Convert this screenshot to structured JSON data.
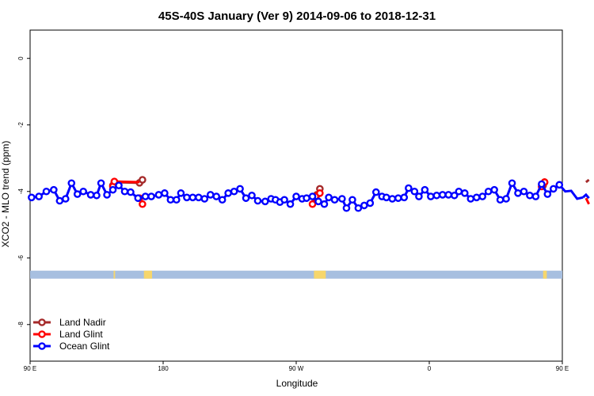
{
  "chart_data": {
    "type": "line",
    "title": "45S-40S January (Ver 9)   2014-09-06 to 2018-12-31",
    "xlabel": "Longitude",
    "ylabel": "XCO2 - MLO trend (ppm)",
    "xlim": [
      90,
      450
    ],
    "ylim": [
      -9.1,
      0.85
    ],
    "x_ticks": [
      {
        "value": 90,
        "label": "90 E"
      },
      {
        "value": 180,
        "label": "180"
      },
      {
        "value": 270,
        "label": "90 W"
      },
      {
        "value": 360,
        "label": "0"
      },
      {
        "value": 450,
        "label": "90 E"
      },
      {
        "value": 540,
        "label": "180"
      }
    ],
    "y_ticks": [
      0,
      -2,
      -4,
      -6,
      -8
    ],
    "grid": false,
    "legend_position": "bottom-left",
    "land_band": {
      "y_range": [
        -6.38,
        -6.62
      ],
      "ocean_color": "#a7bfe0",
      "land_color": "#f6d66c",
      "land_segments": [
        [
          146.5,
          147.5
        ],
        [
          167,
          172.5
        ],
        [
          282,
          290
        ],
        [
          437,
          439.5
        ],
        [
          461,
          467
        ]
      ]
    },
    "series": [
      {
        "name": "Land Nadir",
        "color": "#a52a2a",
        "points": [
          [
            146,
            -3.82
          ],
          [
            147,
            -3.72
          ],
          [
            164,
            -3.74
          ],
          [
            166,
            -3.65
          ]
        ],
        "segments": [
          [
            [
              146,
              -3.82
            ],
            [
              147,
              -3.72
            ],
            [
              164,
              -3.74
            ],
            [
              166,
              -3.65
            ]
          ],
          [
            [
              284,
              -4.1
            ],
            [
              286,
              -3.92
            ]
          ],
          [
            [
              437,
              -3.82
            ],
            [
              438,
              -3.72
            ]
          ],
          [
            [
              466,
              -3.72
            ],
            [
              468,
              -3.65
            ]
          ]
        ],
        "extra_points": [
          [
            284,
            -4.1
          ],
          [
            286,
            -3.92
          ],
          [
            437,
            -3.82
          ],
          [
            438,
            -3.72
          ],
          [
            466,
            -3.72
          ],
          [
            468,
            -3.65
          ]
        ]
      },
      {
        "name": "Land Glint",
        "color": "#ff0000",
        "points": [
          [
            146,
            -3.85
          ],
          [
            147,
            -3.7
          ],
          [
            164,
            -4.2
          ],
          [
            166,
            -4.38
          ]
        ],
        "segments": [
          [
            [
              146,
              -3.85
            ],
            [
              147,
              -3.7
            ],
            [
              164,
              -3.72
            ]
          ],
          [
            [
              164,
              -4.2
            ],
            [
              166,
              -4.38
            ]
          ],
          [
            [
              281,
              -4.38
            ],
            [
              283,
              -4.15
            ],
            [
              286,
              -4.05
            ]
          ],
          [
            [
              436,
              -3.85
            ],
            [
              438,
              -3.72
            ]
          ],
          [
            [
              466,
              -4.2
            ],
            [
              468,
              -4.38
            ]
          ]
        ],
        "extra_points": [
          [
            281,
            -4.38
          ],
          [
            283,
            -4.15
          ],
          [
            286,
            -4.05
          ],
          [
            436,
            -3.85
          ],
          [
            438,
            -3.72
          ],
          [
            466,
            -4.2
          ],
          [
            468,
            -4.38
          ]
        ]
      },
      {
        "name": "Ocean Glint",
        "color": "#0000ff",
        "points": [
          [
            91,
            -4.18
          ],
          [
            96,
            -4.15
          ],
          [
            101,
            -4.0
          ],
          [
            106,
            -3.95
          ],
          [
            110,
            -4.28
          ],
          [
            114,
            -4.22
          ],
          [
            118,
            -3.75
          ],
          [
            122,
            -4.08
          ],
          [
            126,
            -4.0
          ],
          [
            131,
            -4.1
          ],
          [
            135,
            -4.12
          ],
          [
            138,
            -3.75
          ],
          [
            142,
            -4.1
          ],
          [
            146,
            -3.95
          ],
          [
            150,
            -3.82
          ],
          [
            154,
            -4.0
          ],
          [
            158,
            -4.02
          ],
          [
            163,
            -4.2
          ],
          [
            168,
            -4.15
          ],
          [
            172,
            -4.15
          ],
          [
            177,
            -4.1
          ],
          [
            181,
            -4.05
          ],
          [
            185,
            -4.25
          ],
          [
            189,
            -4.25
          ],
          [
            192,
            -4.05
          ],
          [
            196,
            -4.18
          ],
          [
            200,
            -4.18
          ],
          [
            204,
            -4.18
          ],
          [
            208,
            -4.22
          ],
          [
            212,
            -4.1
          ],
          [
            216,
            -4.15
          ],
          [
            220,
            -4.25
          ],
          [
            224,
            -4.05
          ],
          [
            228,
            -4.0
          ],
          [
            232,
            -3.92
          ],
          [
            236,
            -4.2
          ],
          [
            240,
            -4.12
          ],
          [
            244,
            -4.28
          ],
          [
            249,
            -4.3
          ],
          [
            253,
            -4.22
          ],
          [
            256,
            -4.25
          ],
          [
            259,
            -4.32
          ],
          [
            262,
            -4.25
          ],
          [
            266,
            -4.38
          ],
          [
            270,
            -4.15
          ],
          [
            274,
            -4.22
          ],
          [
            277,
            -4.2
          ],
          [
            281,
            -4.15
          ],
          [
            285,
            -4.3
          ],
          [
            289,
            -4.38
          ],
          [
            292,
            -4.18
          ],
          [
            296,
            -4.25
          ],
          [
            301,
            -4.22
          ],
          [
            304,
            -4.5
          ],
          [
            308,
            -4.25
          ],
          [
            312,
            -4.5
          ],
          [
            316,
            -4.42
          ],
          [
            320,
            -4.35
          ],
          [
            324,
            -4.02
          ],
          [
            328,
            -4.15
          ],
          [
            331,
            -4.18
          ],
          [
            335,
            -4.22
          ],
          [
            339,
            -4.2
          ],
          [
            343,
            -4.18
          ],
          [
            346,
            -3.9
          ],
          [
            350,
            -4.0
          ],
          [
            353,
            -4.15
          ],
          [
            357,
            -3.95
          ],
          [
            361,
            -4.15
          ],
          [
            365,
            -4.12
          ],
          [
            369,
            -4.1
          ],
          [
            373,
            -4.1
          ],
          [
            377,
            -4.12
          ],
          [
            380,
            -4.0
          ],
          [
            384,
            -4.05
          ],
          [
            388,
            -4.22
          ],
          [
            392,
            -4.18
          ],
          [
            396,
            -4.15
          ],
          [
            400,
            -4.0
          ],
          [
            404,
            -3.95
          ],
          [
            408,
            -4.25
          ],
          [
            412,
            -4.22
          ],
          [
            416,
            -3.75
          ],
          [
            420,
            -4.05
          ],
          [
            424,
            -4.0
          ],
          [
            428,
            -4.12
          ],
          [
            432,
            -4.15
          ],
          [
            436,
            -3.78
          ],
          [
            440,
            -4.08
          ],
          [
            444,
            -3.92
          ],
          [
            448,
            -3.8
          ],
          [
            452,
            -4.0
          ],
          [
            456,
            -3.98
          ],
          [
            460,
            -4.22
          ],
          [
            464,
            -4.18
          ]
        ],
        "extra_points": [
          [
            466,
            -4.1
          ],
          [
            468,
            -4.2
          ]
        ]
      }
    ]
  }
}
